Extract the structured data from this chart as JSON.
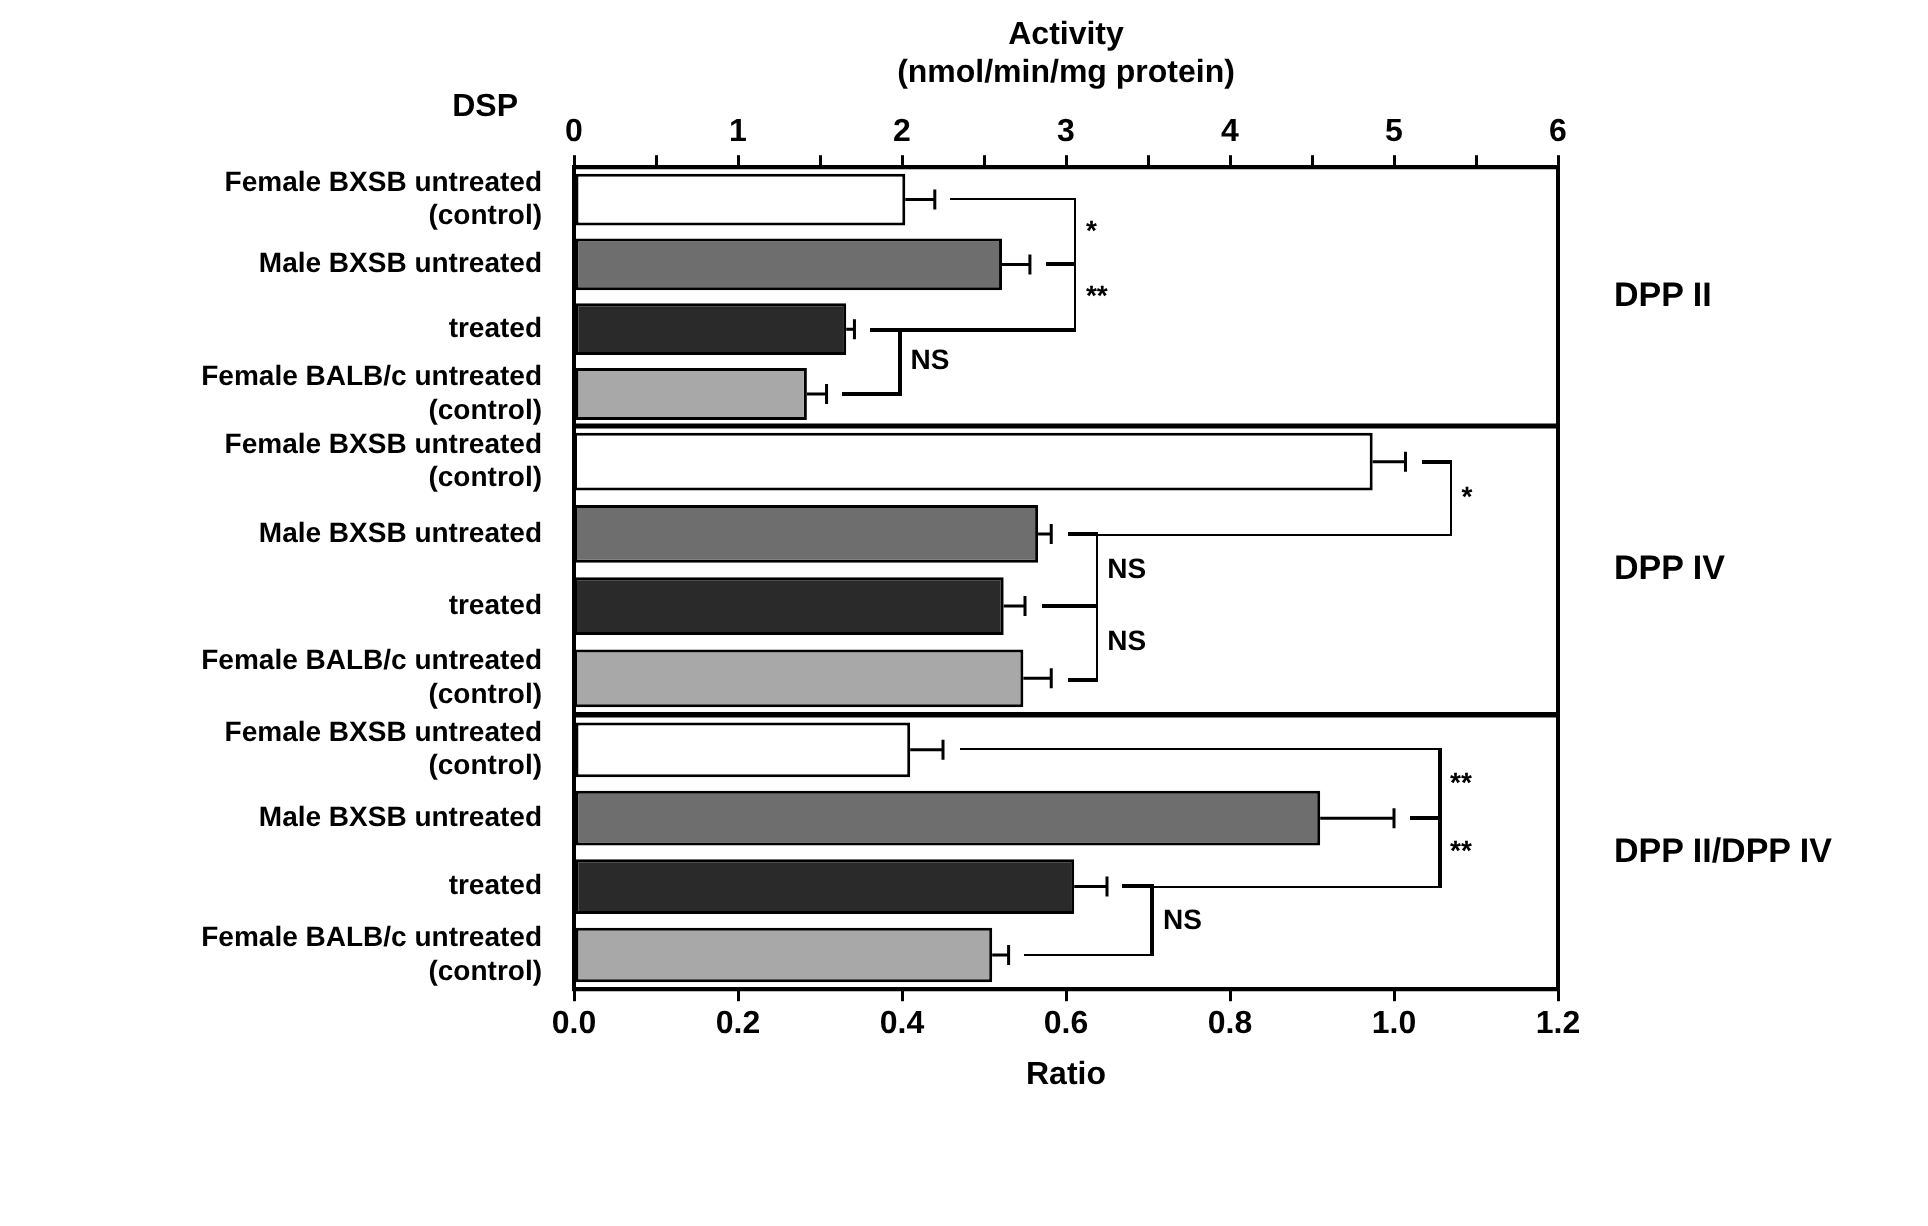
{
  "chart_data": [
    {
      "type": "bar",
      "orientation": "horizontal",
      "y2label": "DPP II",
      "xlabel": "Activity (nmol/min/mg protein)",
      "ylabel": "DSP",
      "categories": [
        "Female BXSB untreated (control)",
        "Male BXSB untreated",
        "treated",
        "Female BALB/c untreated (control)"
      ],
      "values": [
        2.02,
        2.61,
        1.66,
        1.42
      ],
      "errors": [
        [
          2.02,
          2.2
        ],
        [
          2.61,
          2.78
        ],
        [
          1.66,
          1.71
        ],
        [
          1.42,
          1.54
        ]
      ],
      "colors": [
        "#ffffff",
        "#6e6e6e",
        "#2a2a2a",
        "#a8a8a8"
      ],
      "xlim": [
        0,
        6
      ],
      "xticks": [
        0,
        {
          "value": 0.5,
          "label": null
        },
        1,
        {
          "value": 1.5,
          "label": null
        },
        2,
        {
          "value": 2.5,
          "label": null
        },
        3,
        {
          "value": 3.5,
          "label": null
        },
        4,
        {
          "value": 4.5,
          "label": null
        },
        5,
        {
          "value": 5.5,
          "label": null
        },
        6
      ],
      "annotations": [
        "*",
        "**",
        "NS"
      ],
      "grid": false,
      "legend": false
    },
    {
      "type": "bar",
      "orientation": "horizontal",
      "y2label": "DPP IV",
      "categories": [
        "Female BXSB untreated (control)",
        "Male BXSB untreated",
        "treated",
        "Female BALB/c untreated (control)"
      ],
      "values": [
        4.87,
        2.83,
        2.62,
        2.74
      ],
      "errors": [
        [
          4.87,
          5.07
        ],
        [
          2.83,
          2.91
        ],
        [
          2.62,
          2.75
        ],
        [
          2.74,
          2.91
        ]
      ],
      "colors": [
        "#ffffff",
        "#6e6e6e",
        "#2a2a2a",
        "#a8a8a8"
      ],
      "xlim": [
        0,
        6
      ],
      "tick_labels": "y",
      "annotations": [
        "*",
        "NS",
        "NS"
      ],
      "grid": false,
      "legend": false
    },
    {
      "type": "bar",
      "orientation": "horizontal",
      "y2label": "DPP II/DPP IV",
      "xlabel": "Ratio",
      "categories": [
        "Female BXSB untreated (control)",
        "Male BXSB untreated",
        "treated",
        "Female BALB/c untreated (control)"
      ],
      "values": [
        0.41,
        0.91,
        0.61,
        0.51
      ],
      "errors": [
        [
          0.41,
          0.45
        ],
        [
          0.91,
          1.0
        ],
        [
          0.61,
          0.65
        ],
        [
          0.51,
          0.53
        ]
      ],
      "colors": [
        "#ffffff",
        "#6e6e6e",
        "#2a2a2a",
        "#a8a8a8"
      ],
      "xlim": [
        0,
        1.2
      ],
      "xticks": [
        {
          "value": 0,
          "label": "0.0"
        },
        0.2,
        0.4,
        0.6,
        0.8,
        {
          "value": 1,
          "label": "1.0"
        },
        1.2
      ],
      "annotations": [
        "**",
        "**",
        "NS"
      ],
      "grid": false,
      "legend": false
    }
  ]
}
